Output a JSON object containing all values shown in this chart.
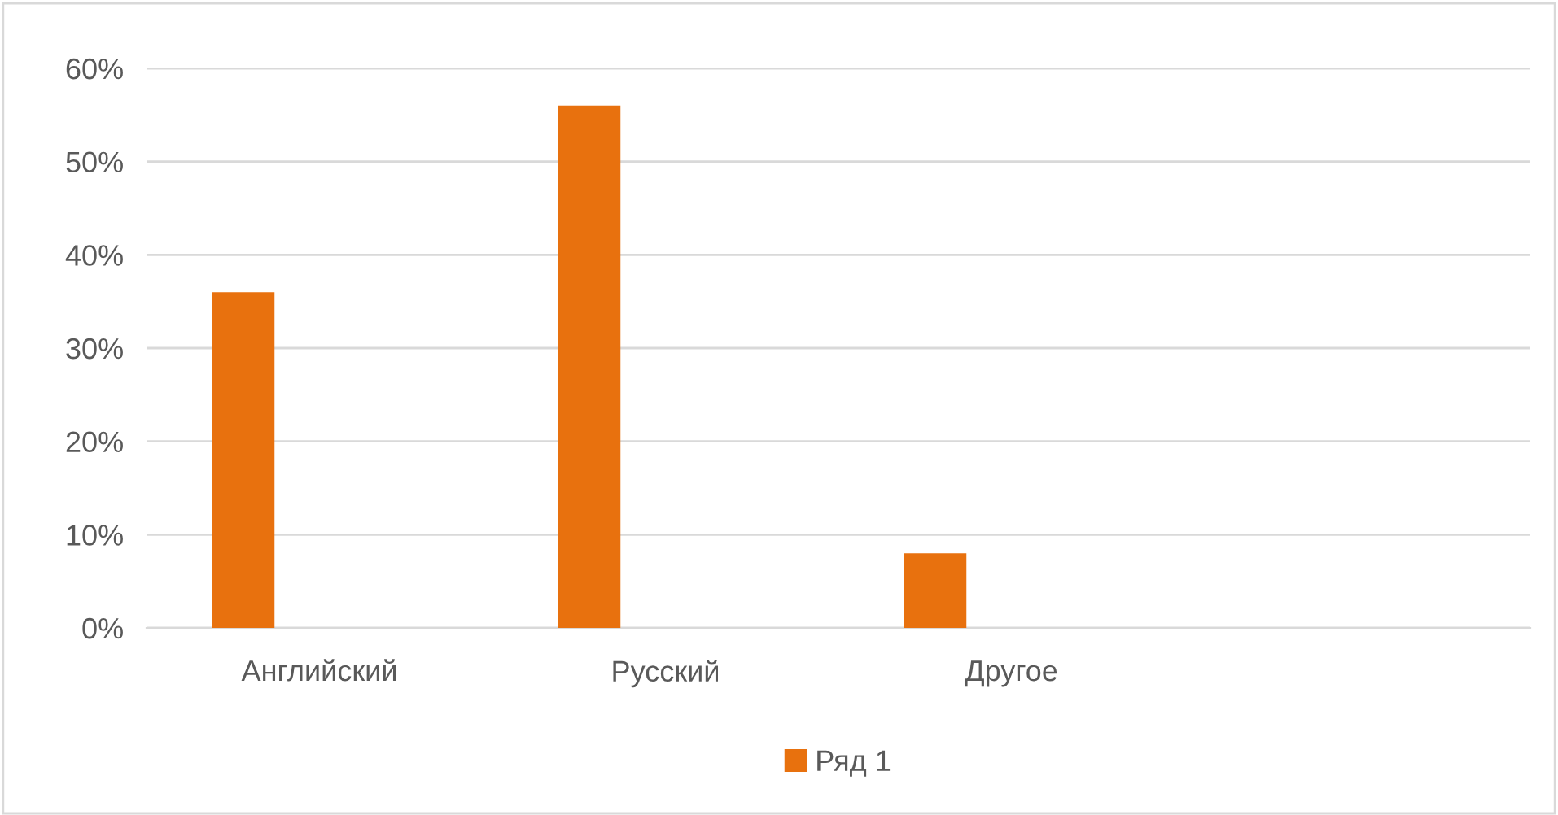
{
  "chart_data": {
    "type": "bar",
    "categories": [
      "Английский",
      "Русский",
      "Другое",
      null
    ],
    "series": [
      {
        "name": "Ряд 1",
        "color": "#e8710e",
        "values": [
          36,
          56,
          8,
          null
        ]
      }
    ],
    "ylim": [
      0,
      60
    ],
    "yticks": [
      {
        "value": 0,
        "label": "0%"
      },
      {
        "value": 10,
        "label": "10%"
      },
      {
        "value": 20,
        "label": "20%"
      },
      {
        "value": 30,
        "label": "30%"
      },
      {
        "value": 40,
        "label": "40%"
      },
      {
        "value": 50,
        "label": "50%"
      },
      {
        "value": 60,
        "label": "60%"
      }
    ],
    "grid": "y",
    "legend": "bottom"
  }
}
